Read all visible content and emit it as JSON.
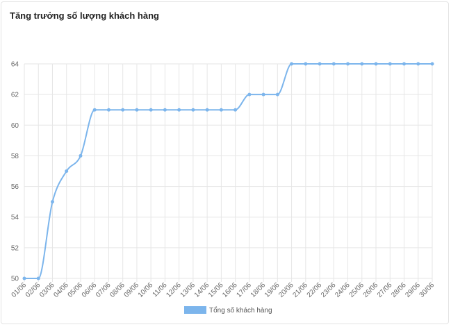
{
  "card": {
    "title": "Tăng trưởng số lượng khách hàng"
  },
  "chart_data": {
    "type": "line",
    "title": "Tăng trưởng số lượng khách hàng",
    "xlabel": "",
    "ylabel": "",
    "x": [
      "01/06",
      "02/06",
      "03/06",
      "04/06",
      "05/06",
      "06/06",
      "07/06",
      "08/06",
      "09/06",
      "10/06",
      "11/06",
      "12/06",
      "13/06",
      "14/06",
      "15/06",
      "16/06",
      "17/06",
      "18/06",
      "19/06",
      "20/06",
      "21/06",
      "22/06",
      "23/06",
      "24/06",
      "25/06",
      "26/06",
      "27/06",
      "28/06",
      "29/06",
      "30/06"
    ],
    "series": [
      {
        "name": "Tổng số khách hàng",
        "values": [
          50,
          50,
          55,
          57,
          58,
          61,
          61,
          61,
          61,
          61,
          61,
          61,
          61,
          61,
          61,
          61,
          62,
          62,
          62,
          64,
          64,
          64,
          64,
          64,
          64,
          64,
          64,
          64,
          64,
          64
        ]
      }
    ],
    "ylim": [
      50,
      64
    ],
    "yticks": [
      50,
      52,
      54,
      56,
      58,
      60,
      62,
      64
    ],
    "grid": true,
    "legend": "bottom",
    "colors": {
      "line": "#7cb5ec",
      "legend_box": "#7cb5ec",
      "grid": "#e6e6e6"
    }
  }
}
